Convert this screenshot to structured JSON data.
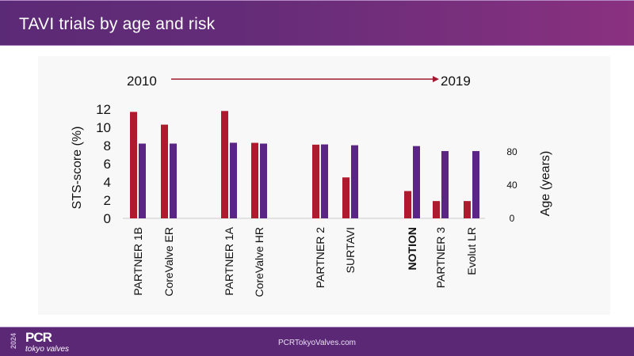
{
  "header": {
    "title": "TAVI trials by age and risk"
  },
  "footer": {
    "logo_year": "2024",
    "logo_name": "PCR",
    "logo_subtitle": "tokyo valves",
    "url": "PCRTokyoValves.com"
  },
  "colors": {
    "sts": "#b01a2e",
    "age": "#5b2585",
    "arrow": "#a01a30",
    "axis": "#cccccc"
  },
  "chart_data": {
    "type": "bar",
    "title": "",
    "timeline": {
      "start": "2010",
      "end": "2019"
    },
    "categories": [
      "PARTNER 1B",
      "CoreValve ER",
      "PARTNER 1A",
      "CoreValve HR",
      "PARTNER 2",
      "SURTAVI",
      "NOTION",
      "PARTNER 3",
      "Evolut LR"
    ],
    "bold_categories": [
      "NOTION"
    ],
    "groups": [
      [
        0,
        1
      ],
      [
        2,
        3
      ],
      [
        4,
        5
      ],
      [
        6,
        7,
        8
      ]
    ],
    "series": [
      {
        "name": "STS-score",
        "axis": "left",
        "values": [
          11.7,
          10.3,
          11.8,
          8.3,
          8.1,
          4.5,
          3.0,
          1.9,
          1.9
        ]
      },
      {
        "name": "Age",
        "axis": "right",
        "values": [
          90,
          90,
          91,
          90,
          89,
          88,
          87,
          81,
          81
        ]
      }
    ],
    "ylabel": "STS-score (%)",
    "ylim": [
      0,
      12
    ],
    "yticks": [
      0,
      2,
      4,
      6,
      8,
      10,
      12
    ],
    "y2label": "Age (years)",
    "y2lim": [
      0,
      114
    ],
    "y2ticks": [
      0,
      40,
      80
    ],
    "grid": false,
    "legend": "none"
  }
}
